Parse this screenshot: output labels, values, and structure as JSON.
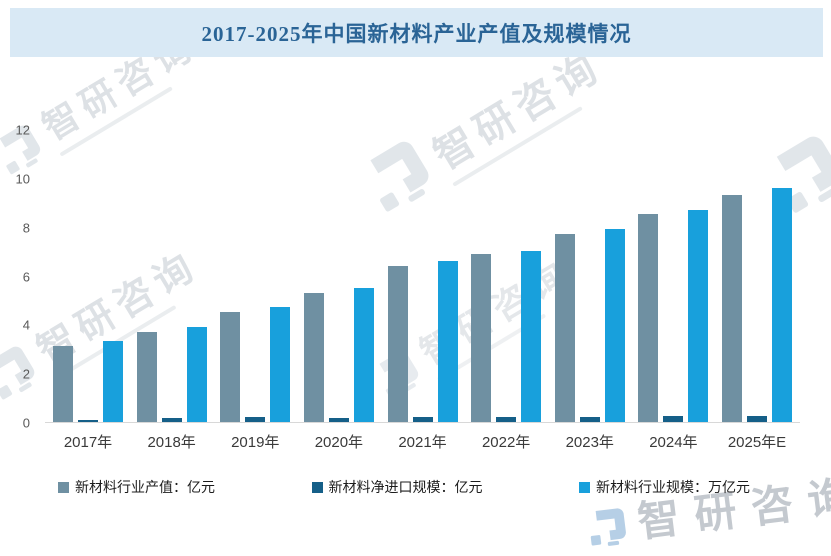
{
  "header": {
    "title": "2017-2025年中国新材料产业产值及规模情况"
  },
  "watermark": {
    "brand": "智研咨询"
  },
  "chart_data": {
    "type": "bar",
    "title": "2017-2025年中国新材料产业产值及规模情况",
    "categories": [
      "2017年",
      "2018年",
      "2019年",
      "2020年",
      "2021年",
      "2022年",
      "2023年",
      "2024年",
      "2025年E"
    ],
    "series": [
      {
        "name": "新材料行业产值：亿元",
        "color": "#6f90a2",
        "values": [
          3.1,
          3.7,
          4.5,
          5.3,
          6.4,
          6.9,
          7.7,
          8.5,
          9.3
        ]
      },
      {
        "name": "新材料净进口规模：亿元",
        "color": "#155f88",
        "values": [
          0.1,
          0.15,
          0.2,
          0.15,
          0.2,
          0.2,
          0.2,
          0.25,
          0.25
        ]
      },
      {
        "name": "新材料行业规模：万亿元",
        "color": "#18a0dc",
        "values": [
          3.3,
          3.9,
          4.7,
          5.5,
          6.6,
          7.0,
          7.9,
          8.7,
          9.6
        ]
      }
    ],
    "xlabel": "",
    "ylabel": "",
    "ylim": [
      0,
      12
    ],
    "yticks": [
      0,
      2,
      4,
      6,
      8,
      10,
      12
    ],
    "grid": false,
    "legend_position": "bottom"
  },
  "colors": {
    "banner_background": "#d9e9f5",
    "title_text": "#2a6496",
    "axis_text": "#595959",
    "axis_line": "#d8d8d8",
    "series_gray": "#6f90a2",
    "series_dark_blue": "#155f88",
    "series_light_blue": "#18a0dc"
  }
}
